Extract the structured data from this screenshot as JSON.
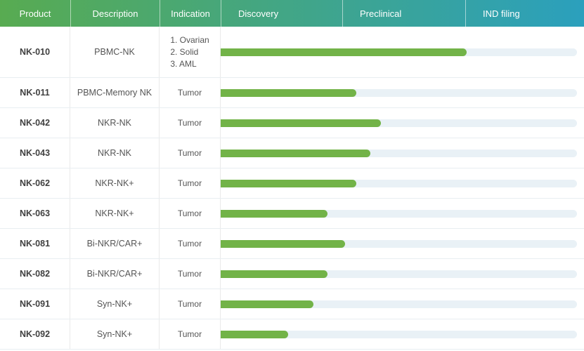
{
  "colors": {
    "header-grad-start": "#58ab51",
    "header-grad-end": "#2ba0bd",
    "bar-fill": "#72b348",
    "bar-track": "#e9f1f6",
    "row-border": "#e8eef1",
    "col-border": "#eaeaea",
    "product-text": "#3f3f3f",
    "cell-text": "#555555",
    "header-text": "#ffffff"
  },
  "header": {
    "columns": [
      {
        "label": "Product"
      },
      {
        "label": "Description"
      },
      {
        "label": "Indication"
      },
      {
        "label": "Discovery"
      },
      {
        "label": "Preclinical"
      },
      {
        "label": "IND filing"
      }
    ]
  },
  "rows": [
    {
      "product": "NK-010",
      "description": "PBMC-NK",
      "indication_lines": [
        "1. Ovarian",
        "2. Solid",
        "3. AML"
      ],
      "progress_pct": 69
    },
    {
      "product": "NK-011",
      "description": "PBMC-Memory NK",
      "indication_lines": [
        "Tumor"
      ],
      "progress_pct": 38
    },
    {
      "product": "NK-042",
      "description": "NKR-NK",
      "indication_lines": [
        "Tumor"
      ],
      "progress_pct": 45
    },
    {
      "product": "NK-043",
      "description": "NKR-NK",
      "indication_lines": [
        "Tumor"
      ],
      "progress_pct": 42
    },
    {
      "product": "NK-062",
      "description": "NKR-NK+",
      "indication_lines": [
        "Tumor"
      ],
      "progress_pct": 38
    },
    {
      "product": "NK-063",
      "description": "NKR-NK+",
      "indication_lines": [
        "Tumor"
      ],
      "progress_pct": 30
    },
    {
      "product": "NK-081",
      "description": "Bi-NKR/CAR+",
      "indication_lines": [
        "Tumor"
      ],
      "progress_pct": 35
    },
    {
      "product": "NK-082",
      "description": "Bi-NKR/CAR+",
      "indication_lines": [
        "Tumor"
      ],
      "progress_pct": 30
    },
    {
      "product": "NK-091",
      "description": "Syn-NK+",
      "indication_lines": [
        "Tumor"
      ],
      "progress_pct": 26
    },
    {
      "product": "NK-092",
      "description": "Syn-NK+",
      "indication_lines": [
        "Tumor"
      ],
      "progress_pct": 19
    }
  ],
  "chart_data": {
    "type": "bar",
    "title": "",
    "stages": [
      "Discovery",
      "Preclinical",
      "IND filing"
    ],
    "categories": [
      "NK-010",
      "NK-011",
      "NK-042",
      "NK-043",
      "NK-062",
      "NK-063",
      "NK-081",
      "NK-082",
      "NK-091",
      "NK-092"
    ],
    "values": [
      69,
      38,
      45,
      42,
      38,
      30,
      35,
      30,
      26,
      19
    ],
    "ylabel": "",
    "xlabel": "",
    "value_unit": "percent of Discovery-to-IND-filing span",
    "xlim": [
      0,
      100
    ],
    "grid": false,
    "legend": "none"
  }
}
